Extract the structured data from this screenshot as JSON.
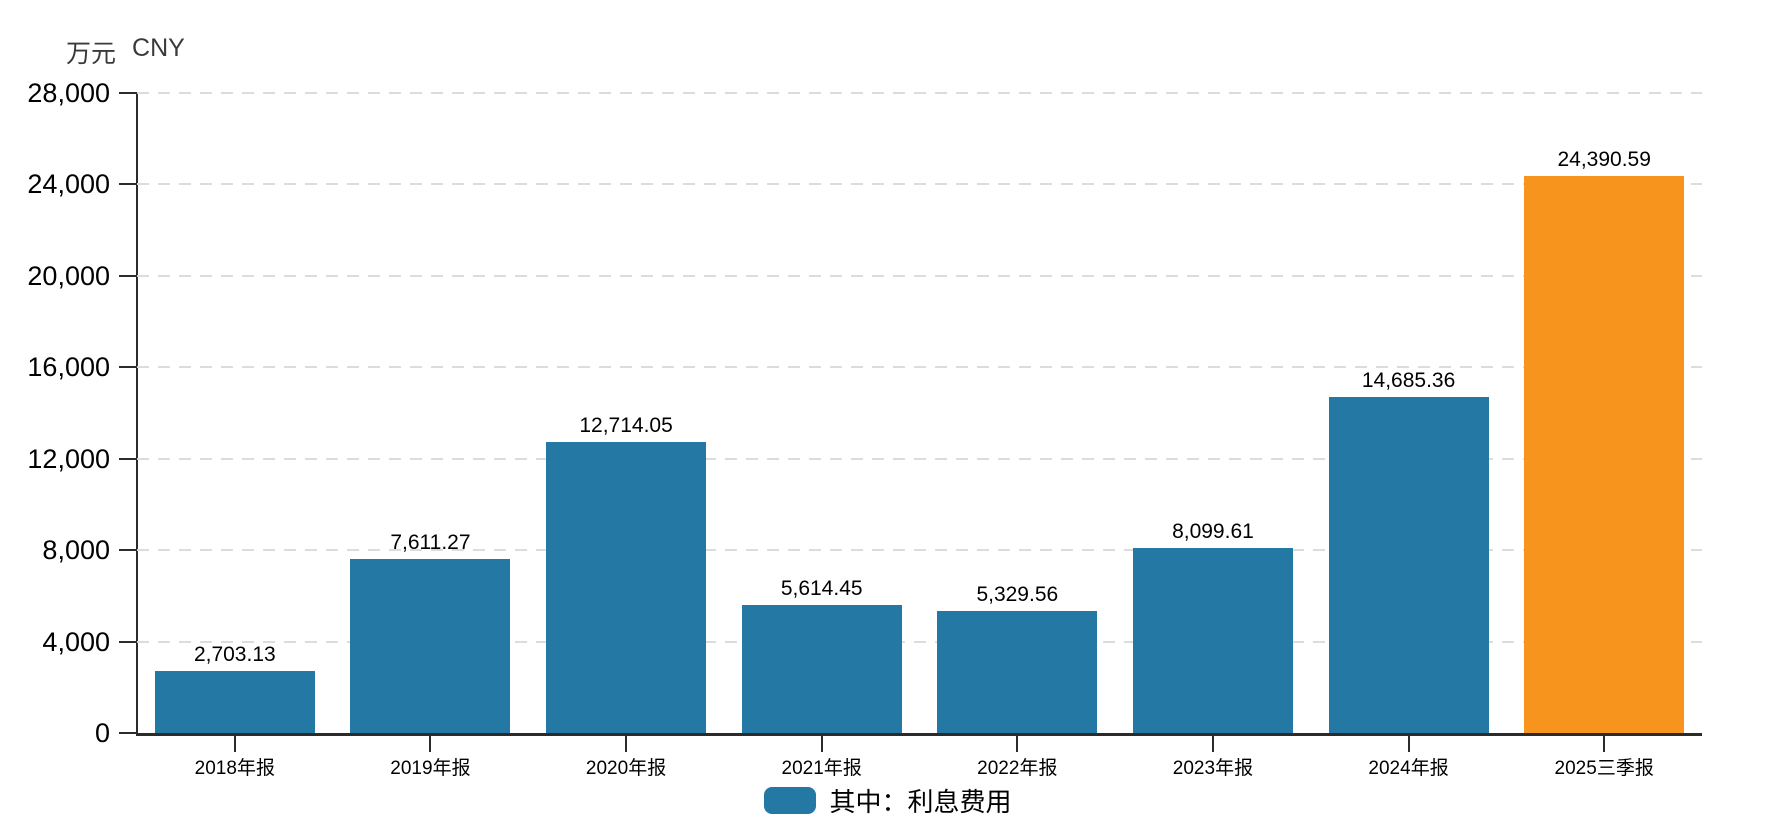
{
  "chart": {
    "unit_label": "万元",
    "currency_label": "CNY",
    "legend": {
      "label": "其中：利息费用"
    },
    "colors": {
      "bar": "#2379a4",
      "highlight": "#f7941e",
      "grid": "#dcdcdc",
      "axis": "#2b2b2b",
      "text": "#000000",
      "unit_text": "#3a3a3a"
    }
  },
  "chart_data": {
    "type": "bar",
    "title": "",
    "ylabel": "万元 CNY",
    "xlabel": "",
    "series_name": "其中：利息费用",
    "categories": [
      "2018年报",
      "2019年报",
      "2020年报",
      "2021年报",
      "2022年报",
      "2023年报",
      "2024年报",
      "2025三季报"
    ],
    "values": [
      2703.13,
      7611.27,
      12714.05,
      5614.45,
      5329.56,
      8099.61,
      14685.36,
      24390.59
    ],
    "value_labels": [
      "2,703.13",
      "7,611.27",
      "12,714.05",
      "5,614.45",
      "5,329.56",
      "8,099.61",
      "14,685.36",
      "24,390.59"
    ],
    "bar_colors": [
      "#2379a4",
      "#2379a4",
      "#2379a4",
      "#2379a4",
      "#2379a4",
      "#2379a4",
      "#2379a4",
      "#f7941e"
    ],
    "ylim": [
      0,
      28000
    ],
    "y_ticks": [
      0,
      4000,
      8000,
      12000,
      16000,
      20000,
      24000,
      28000
    ],
    "y_tick_labels": [
      "0",
      "4,000",
      "8,000",
      "12,000",
      "16,000",
      "20,000",
      "24,000",
      "28,000"
    ],
    "grid": true,
    "grid_style": "dashed",
    "legend_position": "bottom"
  }
}
